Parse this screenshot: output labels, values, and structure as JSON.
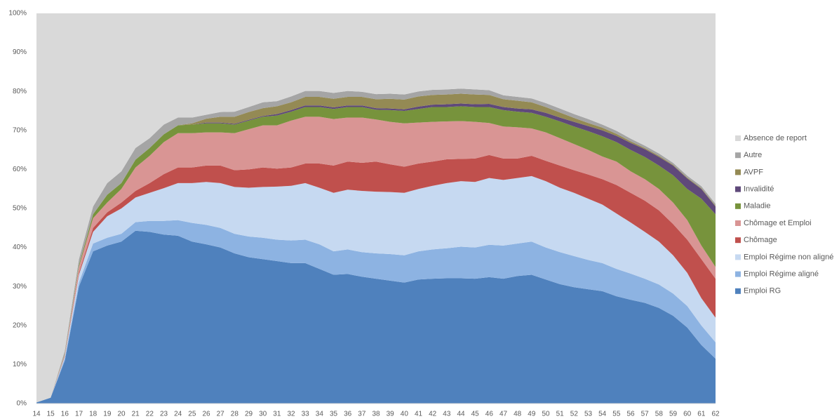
{
  "chart_data": {
    "type": "stacked-area",
    "categories": [
      "14",
      "15",
      "16",
      "17",
      "18",
      "19",
      "20",
      "21",
      "22",
      "23",
      "24",
      "25",
      "26",
      "27",
      "28",
      "29",
      "30",
      "31",
      "32",
      "33",
      "34",
      "35",
      "36",
      "37",
      "38",
      "39",
      "40",
      "41",
      "42",
      "43",
      "44",
      "45",
      "46",
      "47",
      "48",
      "49",
      "50",
      "51",
      "52",
      "53",
      "54",
      "55",
      "56",
      "57",
      "58",
      "59",
      "60",
      "61",
      "62"
    ],
    "ylim": [
      0,
      100
    ],
    "yticks": [
      {
        "value": 0,
        "label": "0%"
      },
      {
        "value": 10,
        "label": "10%"
      },
      {
        "value": 20,
        "label": "20%"
      },
      {
        "value": 30,
        "label": "30%"
      },
      {
        "value": 40,
        "label": "40%"
      },
      {
        "value": 50,
        "label": "50%"
      },
      {
        "value": 60,
        "label": "60%"
      },
      {
        "value": 70,
        "label": "70%"
      },
      {
        "value": 80,
        "label": "80%"
      },
      {
        "value": 90,
        "label": "90%"
      },
      {
        "value": 100,
        "label": "100%"
      }
    ],
    "legend": "right",
    "series": [
      {
        "name": "Emploi RG",
        "color": "#4f81bd",
        "values": [
          0.3,
          1.5,
          11,
          30,
          39,
          40.5,
          41.5,
          44.3,
          44,
          43.3,
          43,
          41.5,
          40.8,
          40,
          38.5,
          37.5,
          37,
          36.5,
          36,
          36,
          34.5,
          33,
          33.2,
          32.5,
          32,
          31.5,
          31,
          31.8,
          32,
          32.1,
          32.1,
          32,
          32.4,
          32,
          32.7,
          33,
          31.8,
          30.6,
          29.8,
          29.3,
          28.8,
          27.5,
          26.6,
          25.8,
          24.5,
          22.5,
          19.5,
          15,
          11.5
        ]
      },
      {
        "name": "Emploi Régime aligné",
        "color": "#8db3e2",
        "values": [
          0,
          0,
          0.5,
          1,
          2,
          2,
          2,
          2.2,
          2.8,
          3.5,
          4,
          4.8,
          5,
          5,
          5,
          5.3,
          5.5,
          5.5,
          5.8,
          6,
          6.3,
          6,
          6.3,
          6.3,
          6.5,
          6.8,
          7,
          7.2,
          7.5,
          7.7,
          8.1,
          8,
          8.3,
          8.5,
          8.3,
          8.5,
          8.2,
          8.2,
          8,
          7.5,
          7.2,
          7,
          6.7,
          6.2,
          6,
          5.7,
          5.5,
          5,
          4.2
        ]
      },
      {
        "name": "Emploi Régime non aligné",
        "color": "#c6d9f1",
        "values": [
          0,
          0,
          0.5,
          2,
          3,
          5.5,
          6.5,
          6.3,
          7.2,
          8.4,
          9.5,
          10.2,
          11,
          11.5,
          12,
          12.5,
          13,
          13.6,
          14,
          14.5,
          14.5,
          15,
          15.3,
          15.7,
          15.8,
          15.9,
          16,
          16,
          16.3,
          16.7,
          16.8,
          16.8,
          17.1,
          16.8,
          16.8,
          16.8,
          17,
          16.5,
          16.2,
          15.7,
          15,
          14.2,
          13.1,
          12,
          11,
          9.8,
          8.5,
          7,
          6.3
        ]
      },
      {
        "name": "Chômage",
        "color": "#c0504d",
        "values": [
          0,
          0,
          0.2,
          0.5,
          1,
          1,
          1.5,
          1.7,
          2.5,
          3.6,
          4,
          4,
          4.2,
          4.5,
          4.3,
          4.7,
          5,
          4.6,
          4.7,
          5,
          6.2,
          7,
          7.2,
          7.2,
          7.7,
          7.1,
          6.7,
          6.5,
          6.2,
          6.1,
          5.7,
          6,
          5.9,
          5.5,
          5,
          5.2,
          5.2,
          5.7,
          5.8,
          6.2,
          6.5,
          7.3,
          7.6,
          8,
          8,
          8,
          8.5,
          10,
          10
        ]
      },
      {
        "name": "Chômage et Emploi",
        "color": "#d99594",
        "values": [
          0,
          0,
          0.3,
          1.5,
          2.5,
          2.5,
          3.5,
          6,
          7,
          8.2,
          8.8,
          8.8,
          8.5,
          8.5,
          9.5,
          10.3,
          10.8,
          11.1,
          12,
          12,
          12,
          11.9,
          11.3,
          11.6,
          10.8,
          10.9,
          11.1,
          10.5,
          10.2,
          9.7,
          9.7,
          9.4,
          8.2,
          8.2,
          8,
          7,
          7.3,
          7,
          6.7,
          6.3,
          5.8,
          6,
          5.5,
          5.5,
          5.5,
          5.5,
          5,
          3.5,
          3
        ]
      },
      {
        "name": "Maladie",
        "color": "#77933c",
        "values": [
          0,
          0,
          0.2,
          0.5,
          1,
          2,
          1.5,
          2,
          2,
          2,
          2,
          2.2,
          2.3,
          2.3,
          2.2,
          2.2,
          2.2,
          2.5,
          2.3,
          2.5,
          2.5,
          2.6,
          2.7,
          2.7,
          2.5,
          3,
          3.2,
          3.5,
          3.8,
          3.7,
          3.8,
          3.8,
          4.1,
          4.2,
          4,
          4,
          4,
          4.3,
          4.5,
          4.8,
          5.2,
          5,
          5.5,
          5.7,
          6,
          7,
          8,
          12,
          13.5
        ]
      },
      {
        "name": "Invalidité",
        "color": "#5f497a",
        "values": [
          0,
          0,
          0,
          0,
          0,
          0,
          0,
          0,
          0,
          0,
          0,
          0,
          0.2,
          0.2,
          0.2,
          0.2,
          0.2,
          0.4,
          0.4,
          0.4,
          0.4,
          0.4,
          0.4,
          0.4,
          0.4,
          0.4,
          0.4,
          0.6,
          0.6,
          0.7,
          0.7,
          0.7,
          0.8,
          0.8,
          0.8,
          0.9,
          1,
          1,
          1.2,
          1.3,
          1.5,
          1.6,
          1.8,
          2,
          2.2,
          2.5,
          2.7,
          2.5,
          2
        ]
      },
      {
        "name": "AVPF",
        "color": "#948a54",
        "values": [
          0,
          0,
          0,
          0,
          0,
          0,
          0,
          0,
          0,
          0,
          0,
          0.3,
          1,
          1.5,
          1.8,
          2,
          2,
          2,
          2,
          2.2,
          2.2,
          2.2,
          2.2,
          2.2,
          2.3,
          2.5,
          2.5,
          2.6,
          2.5,
          2.5,
          2.5,
          2.5,
          2.3,
          2,
          2,
          1.8,
          1.5,
          1.3,
          1,
          0.8,
          0.7,
          0.5,
          0.4,
          0.3,
          0.3,
          0.2,
          0.2,
          0.2,
          0.2
        ]
      },
      {
        "name": "Autre",
        "color": "#a5a5a5",
        "values": [
          0,
          0,
          0.8,
          1.5,
          2,
          3,
          3,
          3,
          2.5,
          2.5,
          2,
          1.5,
          1,
          1.2,
          1.3,
          1.3,
          1.5,
          1.3,
          1.5,
          1.5,
          1.5,
          1.5,
          1.5,
          1.3,
          1.3,
          1.3,
          1.3,
          1.3,
          1.3,
          1.3,
          1.3,
          1.3,
          1.2,
          1,
          1,
          1,
          1,
          1,
          1,
          1,
          0.8,
          0.8,
          0.7,
          0.6,
          0.6,
          0.5,
          0.5,
          0.5,
          0.5
        ]
      },
      {
        "name": "Absence de report",
        "color": "#d9d9d9",
        "values": [
          99.7,
          98.5,
          86.5,
          63,
          49.5,
          43.5,
          40.5,
          34.5,
          32,
          28.5,
          26.7,
          26.7,
          26,
          25.3,
          25.2,
          24,
          22.8,
          22.5,
          21.3,
          19.9,
          19.9,
          20.4,
          19.9,
          20.1,
          20.7,
          20.6,
          20.8,
          20,
          19.6,
          19.5,
          19.3,
          19.5,
          19.7,
          21,
          21.4,
          21.8,
          23,
          24.4,
          25.8,
          27.1,
          28.5,
          30.1,
          32.1,
          33.9,
          35.9,
          38.3,
          41.6,
          44.3,
          48.8
        ]
      }
    ]
  }
}
